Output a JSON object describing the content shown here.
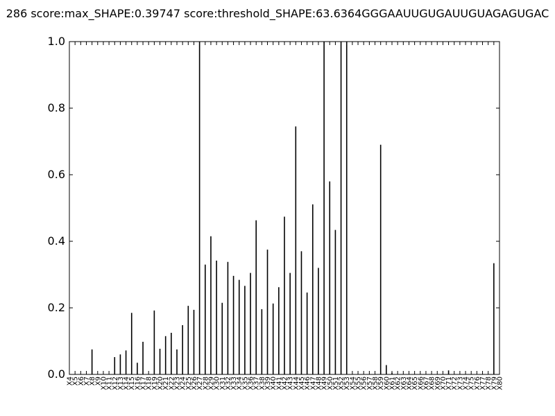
{
  "chart_data": {
    "type": "bar",
    "title": "286 score:max_SHAPE:0.39747 score:threshold_SHAPE:63.6364GGGAAUUGUGAUUGUAGAGUGAC",
    "xlabel": "",
    "ylabel": "",
    "ylim": [
      0.0,
      1.0
    ],
    "yticks": [
      "0.0",
      "0.2",
      "0.4",
      "0.6",
      "0.8",
      "1.0"
    ],
    "grid": false,
    "categories": [
      "X4",
      "X5",
      "X6",
      "X7",
      "X8",
      "X9",
      "X10",
      "X11",
      "X12",
      "X13",
      "X14",
      "X15",
      "X16",
      "X17",
      "X18",
      "X19",
      "X20",
      "X21",
      "X22",
      "X23",
      "X24",
      "X25",
      "X26",
      "X27",
      "X28",
      "X29",
      "X30",
      "X31",
      "X32",
      "X33",
      "X34",
      "X35",
      "X36",
      "X37",
      "X38",
      "X39",
      "X40",
      "X41",
      "X42",
      "X43",
      "X44",
      "X45",
      "X46",
      "X47",
      "X48",
      "X49",
      "X50",
      "X51",
      "X52",
      "X53",
      "X54",
      "X55",
      "X56",
      "X57",
      "X58",
      "X59",
      "X60",
      "X61",
      "X62",
      "X63",
      "X64",
      "X65",
      "X66",
      "X67",
      "X68",
      "X69",
      "X70",
      "X71",
      "X72",
      "X73",
      "X74",
      "X75",
      "X76",
      "X77",
      "X78",
      "X79",
      "X80"
    ],
    "values": [
      0,
      0,
      0,
      0,
      0.075,
      0,
      0,
      0,
      0.052,
      0.06,
      0.072,
      0.185,
      0.035,
      0.098,
      0,
      0.192,
      0.077,
      0.115,
      0.125,
      0.075,
      0.148,
      0.206,
      0.194,
      1.0,
      0.33,
      0.415,
      0.342,
      0.215,
      0.338,
      0.296,
      0.284,
      0.266,
      0.305,
      0.463,
      0.196,
      0.375,
      0.213,
      0.262,
      0.474,
      0.305,
      0.745,
      0.37,
      0.246,
      0.511,
      0.32,
      1.0,
      0.58,
      0.434,
      1.0,
      1.0,
      0,
      0,
      0,
      0,
      0,
      0.69,
      0.028,
      0.005,
      0,
      0,
      0,
      0,
      0,
      0,
      0,
      0,
      0,
      0.012,
      0,
      0,
      0,
      0,
      0,
      0,
      0,
      0.334,
      0
    ]
  }
}
